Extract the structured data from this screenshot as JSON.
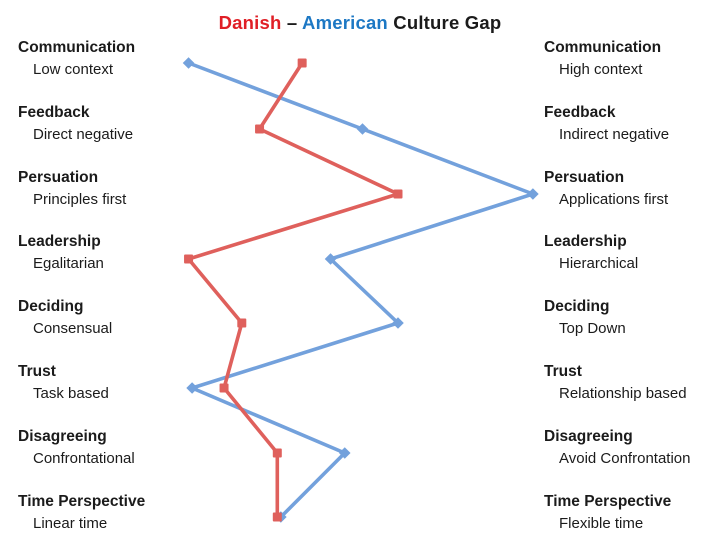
{
  "title": {
    "danish": "Danish",
    "separator": "–",
    "american": "American",
    "suffix": "Culture Gap",
    "full": "Danish – American Culture Gap"
  },
  "colors": {
    "danish_title": "#e01f26",
    "american_title": "#1d78c4",
    "text": "#1b1b1b",
    "background": "#ffffff",
    "danish_line": "#df605c",
    "american_line": "#73a1dc"
  },
  "chart_data": {
    "type": "line",
    "title": "Danish – American Culture Gap",
    "orientation": "horizontal-scale-per-category",
    "grid": false,
    "axis": "hidden",
    "legend": "encoded-in-title-colors",
    "value_range": [
      0,
      1
    ],
    "scale_note": "0 = left-hand extreme label, 1 = right-hand extreme label",
    "categories": [
      {
        "name": "Communication",
        "left": "Low context",
        "right": "High context"
      },
      {
        "name": "Feedback",
        "left": "Direct negative",
        "right": "Indirect negative"
      },
      {
        "name": "Persuation",
        "left": "Principles first",
        "right": "Applications first"
      },
      {
        "name": "Leadership",
        "left": "Egalitarian",
        "right": "Hierarchical"
      },
      {
        "name": "Deciding",
        "left": "Consensual",
        "right": "Top Down"
      },
      {
        "name": "Trust",
        "left": "Task based",
        "right": "Relationship based"
      },
      {
        "name": "Disagreeing",
        "left": "Confrontational",
        "right": "Avoid Confrontation"
      },
      {
        "name": "Time Perspective",
        "left": "Linear time",
        "right": "Flexible time"
      }
    ],
    "series": [
      {
        "name": "Danish",
        "color": "#df605c",
        "marker": "square",
        "values": [
          0.33,
          0.21,
          0.6,
          0.01,
          0.16,
          0.11,
          0.26,
          0.26
        ]
      },
      {
        "name": "American",
        "color": "#73a1dc",
        "marker": "diamond",
        "values": [
          0.01,
          0.5,
          0.98,
          0.41,
          0.6,
          0.02,
          0.45,
          0.27
        ]
      }
    ]
  }
}
